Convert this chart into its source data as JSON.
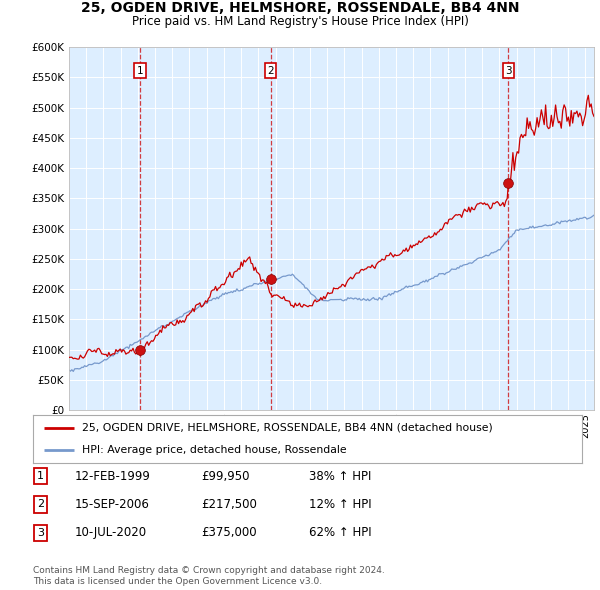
{
  "title": "25, OGDEN DRIVE, HELMSHORE, ROSSENDALE, BB4 4NN",
  "subtitle": "Price paid vs. HM Land Registry's House Price Index (HPI)",
  "ylim": [
    0,
    600000
  ],
  "yticks": [
    0,
    50000,
    100000,
    150000,
    200000,
    250000,
    300000,
    350000,
    400000,
    450000,
    500000,
    550000,
    600000
  ],
  "ytick_labels": [
    "£0",
    "£50K",
    "£100K",
    "£150K",
    "£200K",
    "£250K",
    "£300K",
    "£350K",
    "£400K",
    "£450K",
    "£500K",
    "£550K",
    "£600K"
  ],
  "xlim_start": 1995.0,
  "xlim_end": 2025.5,
  "transactions": [
    {
      "num": 1,
      "date": "12-FEB-1999",
      "price": 99950,
      "pct": "38%",
      "year": 1999.12
    },
    {
      "num": 2,
      "date": "15-SEP-2006",
      "price": 217500,
      "pct": "12%",
      "year": 2006.71
    },
    {
      "num": 3,
      "date": "10-JUL-2020",
      "price": 375000,
      "pct": "62%",
      "year": 2020.53
    }
  ],
  "legend_line1": "25, OGDEN DRIVE, HELMSHORE, ROSSENDALE, BB4 4NN (detached house)",
  "legend_line2": "HPI: Average price, detached house, Rossendale",
  "footnote1": "Contains HM Land Registry data © Crown copyright and database right 2024.",
  "footnote2": "This data is licensed under the Open Government Licence v3.0.",
  "red_color": "#cc0000",
  "blue_color": "#7799cc",
  "plot_bg": "#ddeeff",
  "grid_color": "#ffffff",
  "title_fontsize": 10,
  "subtitle_fontsize": 8.5
}
